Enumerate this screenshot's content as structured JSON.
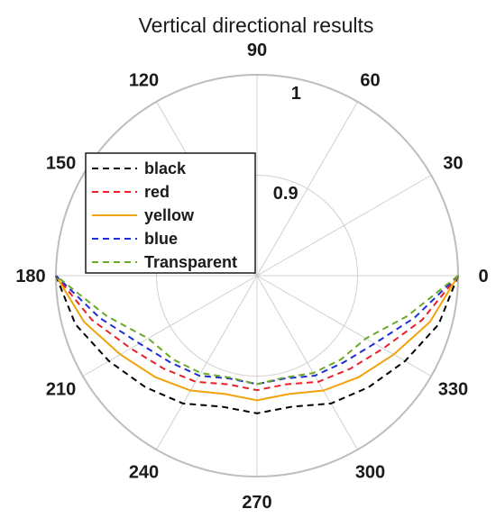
{
  "chart_data": {
    "type": "polar-line",
    "title": "Vertical directional results",
    "theta_unit": "degrees",
    "theta_ticks": [
      0,
      30,
      60,
      90,
      120,
      150,
      180,
      210,
      240,
      270,
      300,
      330
    ],
    "theta_tick_labels": [
      "0",
      "30",
      "60",
      "90",
      "120",
      "150",
      "180",
      "210",
      "240",
      "270",
      "300",
      "330"
    ],
    "r_ticks": [
      0.9,
      1
    ],
    "r_tick_labels": [
      "0.9",
      "1"
    ],
    "rlim": [
      0.8,
      1
    ],
    "grid": true,
    "legend_position": "top-left",
    "theta": [
      0,
      15,
      30,
      45,
      60,
      75,
      90,
      105,
      120,
      135,
      150,
      165,
      180
    ],
    "series": [
      {
        "name": "black",
        "color": "#000000",
        "dash": "dashed",
        "r": [
          1.0,
          0.987,
          0.97,
          0.957,
          0.947,
          0.935,
          0.937,
          0.935,
          0.947,
          0.957,
          0.97,
          0.987,
          1.0
        ]
      },
      {
        "name": "red",
        "color": "#e8202a",
        "dash": "dashed",
        "r": [
          1.0,
          0.97,
          0.945,
          0.931,
          0.922,
          0.912,
          0.914,
          0.912,
          0.922,
          0.931,
          0.945,
          0.97,
          1.0
        ]
      },
      {
        "name": "yellow",
        "color": "#f0a30a",
        "dash": "solid",
        "r": [
          1.0,
          0.978,
          0.957,
          0.943,
          0.932,
          0.922,
          0.924,
          0.922,
          0.932,
          0.943,
          0.957,
          0.978,
          1.0
        ]
      },
      {
        "name": "blue",
        "color": "#1f2fd6",
        "dash": "dashed",
        "r": [
          1.0,
          0.962,
          0.935,
          0.922,
          0.915,
          0.906,
          0.908,
          0.906,
          0.915,
          0.922,
          0.935,
          0.962,
          1.0
        ]
      },
      {
        "name": "Transparent",
        "color": "#6aaa2a",
        "dash": "dashed",
        "r": [
          1.0,
          0.955,
          0.925,
          0.918,
          0.912,
          0.905,
          0.908,
          0.905,
          0.912,
          0.918,
          0.925,
          0.955,
          1.0
        ]
      }
    ]
  }
}
